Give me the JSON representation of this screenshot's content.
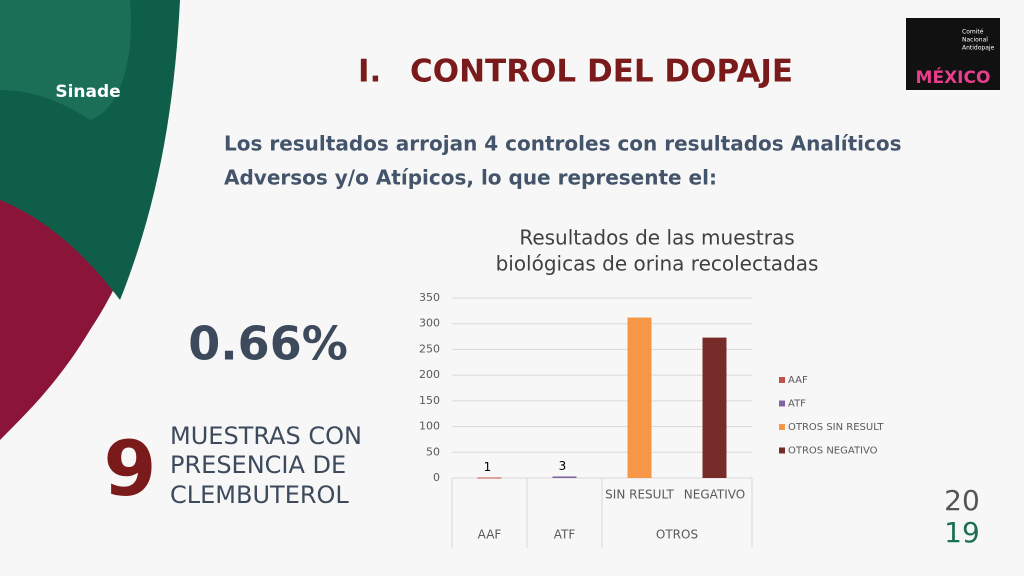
{
  "logo": {
    "left": "Sinade",
    "right_lines": [
      "Comité",
      "Nacional",
      "Antidopaje"
    ],
    "right_word": "MÉXICO"
  },
  "header": {
    "number": "I.",
    "title": "CONTROL DEL DOPAJE"
  },
  "body": {
    "lines": [
      "Los resultados arrojan 4 controles con resultados Analíticos",
      "Adversos y/o Atípicos, lo que represente el:"
    ]
  },
  "stat": {
    "percent": "0.66%",
    "count": "9",
    "count_lines": [
      "MUESTRAS CON",
      "PRESENCIA DE",
      "CLEMBUTEROL"
    ]
  },
  "year": {
    "top": "20",
    "bottom": "19"
  },
  "chart_data": {
    "type": "bar",
    "title_lines": [
      "Resultados de las muestras",
      "biológicas de orina recolectadas"
    ],
    "groups": [
      {
        "name": "AAF",
        "categories": [
          null
        ]
      },
      {
        "name": "ATF",
        "categories": [
          null
        ]
      },
      {
        "name": "OTROS",
        "categories": [
          "SIN RESULT",
          "NEGATIVO"
        ]
      }
    ],
    "series": [
      {
        "name": "AAF",
        "color": "#c0504d",
        "values": [
          1,
          null,
          null,
          null
        ],
        "show_values": true
      },
      {
        "name": "ATF",
        "color": "#8064a2",
        "values": [
          null,
          3,
          null,
          null
        ],
        "show_values": true
      },
      {
        "name": "OTROS SIN RESULT",
        "color": "#f79646",
        "values": [
          null,
          null,
          312,
          null
        ]
      },
      {
        "name": "OTROS NEGATIVO",
        "color": "#772c2a",
        "values": [
          null,
          null,
          null,
          273
        ]
      }
    ],
    "ylim": [
      0,
      350
    ],
    "yticks": [
      0,
      50,
      100,
      150,
      200,
      250,
      300,
      350
    ],
    "grid": true,
    "legend": "right"
  }
}
